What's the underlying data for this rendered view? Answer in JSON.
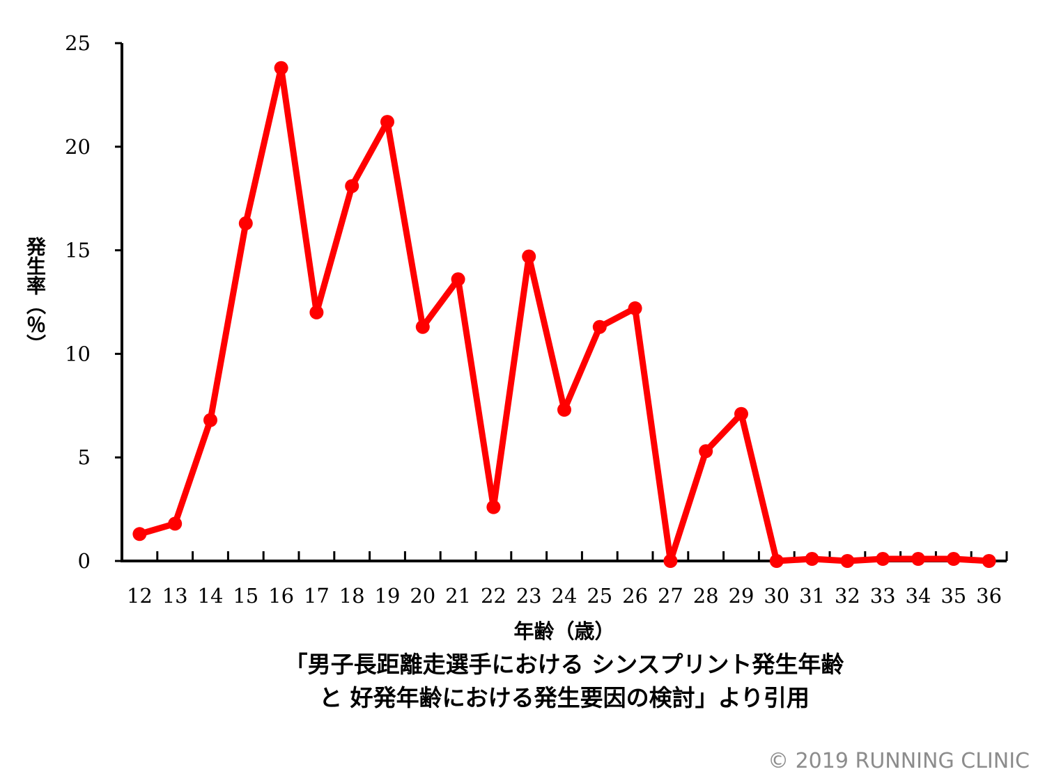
{
  "chart_data": {
    "type": "line",
    "x": [
      12,
      13,
      14,
      15,
      16,
      17,
      18,
      19,
      20,
      21,
      22,
      23,
      24,
      25,
      26,
      27,
      28,
      29,
      30,
      31,
      32,
      33,
      34,
      35,
      36
    ],
    "categories": [
      "12",
      "13",
      "14",
      "15",
      "16",
      "17",
      "18",
      "19",
      "20",
      "21",
      "22",
      "23",
      "24",
      "25",
      "26",
      "27",
      "28",
      "29",
      "30",
      "31",
      "32",
      "33",
      "34",
      "35",
      "36"
    ],
    "series": [
      {
        "values": [
          1.3,
          1.8,
          6.8,
          16.3,
          23.8,
          12.0,
          18.1,
          21.2,
          11.3,
          13.6,
          2.6,
          14.7,
          7.3,
          11.3,
          12.2,
          0,
          5.3,
          7.1,
          0,
          0.1,
          0,
          0.1,
          0.1,
          0.1,
          0
        ],
        "color": "#ff0000"
      }
    ],
    "yticks": [
      "0",
      "5",
      "10",
      "15",
      "20",
      "25"
    ],
    "ylim": [
      0,
      25
    ],
    "xlabel": "年齢（歳）",
    "ylabel": "発生率（％）",
    "grid": false
  },
  "caption": {
    "line1": "「男子長距離走選手における シンスプリント発生年齢",
    "line2": "と 好発年齢における発生要因の検討」より引用"
  },
  "copyright": "© 2019 RUNNING CLINIC"
}
